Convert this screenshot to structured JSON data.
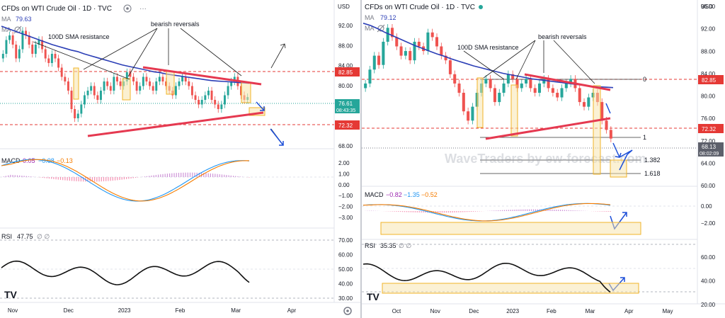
{
  "left_chart": {
    "header": {
      "symbol_title": "CFDs on WTI Crude Oil · 1D · TVC",
      "currency": "USD",
      "ma_label": "MA",
      "ma_value": "79.63",
      "ma2_label": "MA"
    },
    "annotations": {
      "sma_note": "100D SMA resistance",
      "reversal_note": "bearish reversals"
    },
    "price_badges": {
      "resistance": "82.85",
      "last_price": "76.61",
      "countdown": "08:43:35",
      "support": "72.32"
    },
    "price_ticks": [
      "92.00",
      "88.00",
      "84.00",
      "80.00",
      "76.00",
      "72.00",
      "68.00"
    ],
    "macd": {
      "label": "MACD",
      "v1": "0.05",
      "v2": "−0.08",
      "v3": "−0.13",
      "ticks": [
        "2.00",
        "1.00",
        "0.00",
        "−1.00",
        "−2.00",
        "−3.00"
      ]
    },
    "rsi": {
      "label": "RSI",
      "value": "47.75",
      "ticks": [
        "70.00",
        "60.00",
        "50.00",
        "40.00",
        "30.00"
      ]
    },
    "time_ticks": [
      "Nov",
      "Dec",
      "2023",
      "Feb",
      "Mar",
      "Apr"
    ],
    "logo": "TV"
  },
  "right_chart": {
    "header": {
      "symbol_title": "CFDs on WTI Crude Oil · 1D · TVC",
      "currency": "USD",
      "ma_label": "MA",
      "ma_value": "79.12",
      "ma2_label": "MA"
    },
    "annotations": {
      "sma_note": "100D SMA resistance",
      "reversal_note": "bearish reversals",
      "watermark": "WaveTraders by ew-forecast.com"
    },
    "fib_labels": [
      "0",
      "1",
      "1.382",
      "1.618"
    ],
    "price_badges": {
      "resistance": "82.85",
      "support": "72.32",
      "last_price": "68.13",
      "countdown": "08:02:09"
    },
    "price_ticks": [
      "96.00",
      "92.00",
      "88.00",
      "84.00",
      "80.00",
      "76.00",
      "72.00",
      "64.00",
      "60.00"
    ],
    "macd": {
      "label": "MACD",
      "v1": "−0.82",
      "v2": "−1.35",
      "v3": "−0.52",
      "ticks": [
        "0.00",
        "−2.00"
      ]
    },
    "rsi": {
      "label": "RSI",
      "value": "35.35",
      "ticks": [
        "60.00",
        "40.00",
        "20.00"
      ]
    },
    "time_ticks": [
      "Oct",
      "Nov",
      "Dec",
      "2023",
      "Feb",
      "Mar",
      "Apr",
      "May"
    ]
  },
  "colors": {
    "up": "#26a69a",
    "down": "#ef5350",
    "ma": "#2b3eb6",
    "trend": "#e53950",
    "annotation": "#222222",
    "arrow_blue": "#1d4fd8",
    "box": "#f0b429",
    "macd_fast": "#2196f3",
    "macd_slow": "#f57c00",
    "hist_up": "#9c27b0",
    "rsi": "#111111",
    "badge_red": "#e53935",
    "badge_green": "#26a69a",
    "badge_grey": "#5d606b"
  },
  "chart_data": [
    {
      "type": "candlestick",
      "title": "CFDs on WTI Crude Oil · 1D · TVC",
      "ylabel": "USD",
      "ylim": [
        66,
        94
      ],
      "x_ticks": [
        "Nov",
        "Dec",
        "2023",
        "Feb",
        "Mar",
        "Apr"
      ],
      "series": [
        {
          "name": "MA",
          "values": [
            92,
            91.5,
            91,
            90.5,
            90,
            89.5,
            89,
            88.5,
            88,
            87.6,
            87.2,
            86.8,
            86.5,
            86,
            85.6,
            85.2,
            84.8,
            84.4,
            84,
            83.6,
            83.3,
            83,
            82.7,
            82.4,
            82.1,
            81.9,
            81.6,
            81.4,
            81.2,
            81,
            80.8,
            80.6,
            80.4,
            80.2,
            80.1,
            80,
            79.9,
            79.8,
            79.7,
            79.6
          ]
        },
        {
          "name": "close",
          "values": [
            86,
            89,
            90,
            88,
            85,
            87,
            91,
            90,
            88,
            86,
            88,
            89,
            87,
            85,
            84,
            86,
            85,
            83,
            81,
            80,
            78,
            74,
            72,
            73,
            75,
            77,
            78,
            79,
            77,
            76,
            78,
            80,
            79,
            78,
            81,
            80,
            79,
            80,
            82,
            81,
            80,
            78,
            79,
            81,
            80,
            79,
            78,
            80,
            81,
            80,
            79,
            78,
            77,
            79,
            80,
            81,
            80,
            79,
            77,
            76,
            75,
            76,
            77,
            78,
            76,
            75,
            74,
            75,
            77,
            79,
            80,
            81,
            79,
            77,
            76,
            76.6
          ]
        }
      ],
      "annotations": [
        "100D SMA resistance",
        "bearish reversals"
      ],
      "levels": {
        "resistance": 82.85,
        "support": 72.32,
        "last": 76.61
      }
    },
    {
      "type": "line",
      "title": "MACD",
      "values_shown": {
        "macd": 0.05,
        "signal": -0.08,
        "histogram": -0.13
      },
      "ylim": [
        -3.5,
        2.5
      ]
    },
    {
      "type": "line",
      "title": "RSI",
      "values_shown": {
        "rsi": 47.75
      },
      "ylim": [
        25,
        75
      ]
    },
    {
      "type": "candlestick",
      "title": "CFDs on WTI Crude Oil · 1D · TVC",
      "ylabel": "USD",
      "ylim": [
        58,
        98
      ],
      "x_ticks": [
        "Oct",
        "Nov",
        "Dec",
        "2023",
        "Feb",
        "Mar",
        "Apr",
        "May"
      ],
      "series": [
        {
          "name": "MA",
          "values": [
            93,
            92.5,
            91.8,
            91,
            90.3,
            89.6,
            88.9,
            88.2,
            87.6,
            87,
            86.4,
            85.9,
            85.3,
            84.8,
            84.3,
            83.8,
            83.4,
            83,
            82.6,
            82.2,
            81.9,
            81.6,
            81.3,
            81,
            80.8,
            80.6,
            80.4,
            80.2,
            80,
            79.8,
            79.6,
            79.4,
            79.3,
            79.2,
            79.12
          ]
        },
        {
          "name": "close",
          "values": [
            80,
            83,
            86,
            84,
            89,
            92,
            90,
            88,
            86,
            87,
            85,
            89,
            88,
            87,
            91,
            90,
            88,
            86,
            85,
            82,
            80,
            78,
            74,
            72,
            75,
            78,
            80,
            81,
            79,
            76,
            78,
            80,
            82,
            81,
            79,
            80,
            81,
            79,
            78,
            80,
            81,
            79,
            78,
            77,
            79,
            80,
            81,
            79,
            76,
            75,
            77,
            78,
            76,
            72,
            70,
            68.13
          ]
        }
      ],
      "fib_levels": {
        "0": 82.85,
        "1": 70.5,
        "1.382": 66.0,
        "1.618": 63.2
      },
      "annotations": [
        "100D SMA resistance",
        "bearish reversals",
        "WaveTraders by ew-forecast.com"
      ],
      "levels": {
        "resistance": 82.85,
        "support": 72.32,
        "last": 68.13
      }
    },
    {
      "type": "line",
      "title": "MACD",
      "values_shown": {
        "macd": -0.82,
        "signal": -1.35,
        "histogram": -0.52
      },
      "ylim": [
        -4,
        2
      ]
    },
    {
      "type": "line",
      "title": "RSI",
      "values_shown": {
        "rsi": 35.35
      },
      "ylim": [
        15,
        75
      ]
    }
  ]
}
